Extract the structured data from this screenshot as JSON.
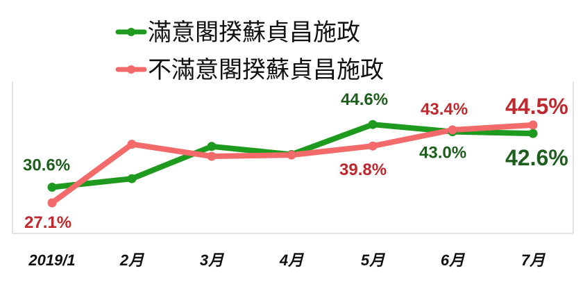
{
  "chart_data": {
    "type": "line",
    "categories": [
      "2019/1",
      "2月",
      "3月",
      "4月",
      "5月",
      "6月",
      "7月"
    ],
    "series": [
      {
        "name": "滿意閣揆蘇貞昌施政",
        "color": "#1e9b1e",
        "label_color": "#1d5e1d",
        "values": [
          30.6,
          32.5,
          39.7,
          37.9,
          44.6,
          43.0,
          42.6
        ]
      },
      {
        "name": "不滿意閣揆蘇貞昌施政",
        "color": "#f26a6a",
        "label_color": "#c0282d",
        "values": [
          27.1,
          40.2,
          37.5,
          37.8,
          39.8,
          43.4,
          44.5
        ]
      }
    ],
    "data_labels": [
      {
        "series": 0,
        "index": 0,
        "text": "30.6%"
      },
      {
        "series": 1,
        "index": 0,
        "text": "27.1%"
      },
      {
        "series": 0,
        "index": 4,
        "text": "44.6%"
      },
      {
        "series": 1,
        "index": 4,
        "text": "39.8%"
      },
      {
        "series": 1,
        "index": 5,
        "text": "43.4%"
      },
      {
        "series": 0,
        "index": 5,
        "text": "43.0%"
      },
      {
        "series": 1,
        "index": 6,
        "text": "44.5%",
        "emphasis": true
      },
      {
        "series": 0,
        "index": 6,
        "text": "42.6%",
        "emphasis": true
      }
    ],
    "ylim": [
      15,
      60
    ],
    "grid": false,
    "legend_position": "top-center"
  }
}
